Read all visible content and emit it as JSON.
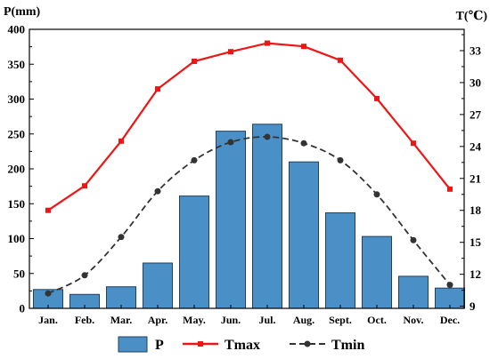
{
  "chart_data": {
    "type": "bar",
    "categories": [
      "Jan.",
      "Feb.",
      "Mar.",
      "Apr.",
      "May.",
      "Jun.",
      "Jul.",
      "Aug.",
      "Sept.",
      "Oct.",
      "Nov.",
      "Dec."
    ],
    "ylabel": "P(mm)",
    "y2label": "T(℃)",
    "ylim": [
      0,
      400
    ],
    "y2lim": [
      8.8,
      35
    ],
    "yticks": [
      0,
      50,
      100,
      150,
      200,
      250,
      300,
      350,
      400
    ],
    "y2ticks": [
      9,
      12,
      15,
      18,
      21,
      24,
      27,
      30,
      33
    ],
    "grid": false,
    "legend": "bottom",
    "frame_color": "#000000",
    "series": [
      {
        "name": "P",
        "type": "bar",
        "axis": "left",
        "color": "#4b8fc7",
        "edge_color": "#23405e",
        "values": [
          27,
          20,
          31,
          65,
          161,
          254,
          264,
          210,
          137,
          103,
          46,
          29
        ]
      },
      {
        "name": "Tmax",
        "type": "line",
        "axis": "right",
        "color": "#ee1515",
        "marker": "square",
        "line_style": "solid",
        "values": [
          18.0,
          20.3,
          24.5,
          29.4,
          32.0,
          32.9,
          33.7,
          33.4,
          32.1,
          28.5,
          24.3,
          20.0
        ]
      },
      {
        "name": "Tmin",
        "type": "line",
        "axis": "right",
        "color": "#333333",
        "marker": "circle",
        "line_style": "dashed",
        "values": [
          10.2,
          11.9,
          15.5,
          19.8,
          22.7,
          24.4,
          24.9,
          24.3,
          22.7,
          19.5,
          15.2,
          11.0
        ]
      }
    ]
  }
}
